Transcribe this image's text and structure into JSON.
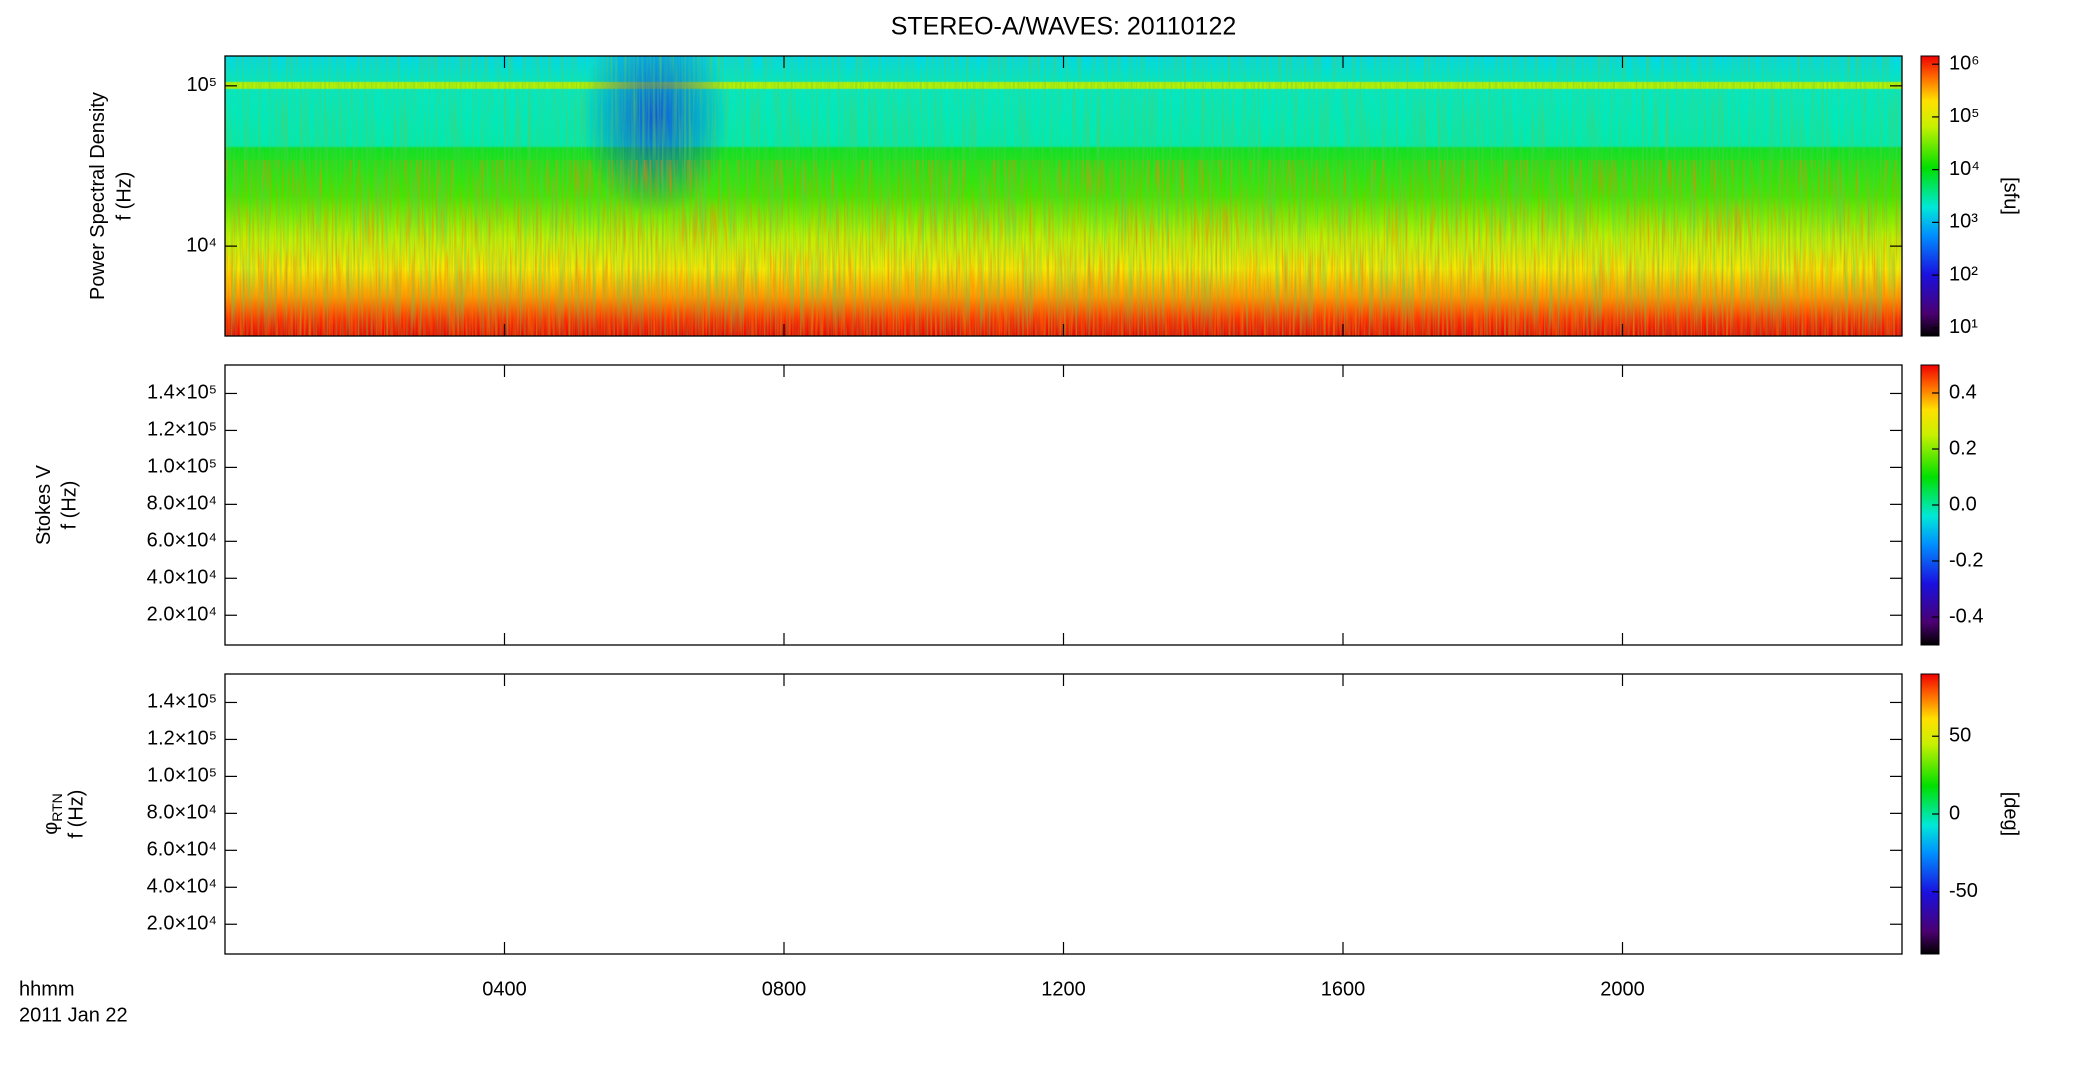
{
  "chart_data": [
    {
      "type": "spectrogram",
      "title": "STEREO-A/WAVES: 20110122",
      "ylabel": "Power Spectral Density",
      "ylabel2": "f (Hz)",
      "ylog": true,
      "ylim": [
        2750,
        153500
      ],
      "yticks": [
        {
          "value": 10000,
          "label": "10⁴"
        },
        {
          "value": 100000,
          "label": "10⁵"
        }
      ],
      "xlim": [
        0,
        24
      ],
      "xticks": [
        {
          "value": 4,
          "label": "0400"
        },
        {
          "value": 8,
          "label": "0800"
        },
        {
          "value": 12,
          "label": "1200"
        },
        {
          "value": 16,
          "label": "1600"
        },
        {
          "value": 20,
          "label": "2000"
        }
      ],
      "colorbar": {
        "log": true,
        "lim": [
          7,
          1430000
        ],
        "label": "[sfu]",
        "ticks": [
          {
            "value": 10,
            "label": "10¹"
          },
          {
            "value": 100,
            "label": "10²"
          },
          {
            "value": 1000,
            "label": "10³"
          },
          {
            "value": 10000,
            "label": "10⁴"
          },
          {
            "value": 100000,
            "label": "10⁵"
          },
          {
            "value": 1000000,
            "label": "10⁶"
          }
        ]
      }
    },
    {
      "type": "spectrogram",
      "ylabel": "Stokes V",
      "ylabel2": "f (Hz)",
      "ylog": false,
      "ylim": [
        3900,
        155400
      ],
      "yticks": [
        {
          "value": 20000,
          "label": "2.0×10⁴"
        },
        {
          "value": 40000,
          "label": "4.0×10⁴"
        },
        {
          "value": 60000,
          "label": "6.0×10⁴"
        },
        {
          "value": 80000,
          "label": "8.0×10⁴"
        },
        {
          "value": 100000,
          "label": "1.0×10⁵"
        },
        {
          "value": 120000,
          "label": "1.2×10⁵"
        },
        {
          "value": 140000,
          "label": "1.4×10⁵"
        }
      ],
      "xlim": [
        0,
        24
      ],
      "xticks": [
        {
          "value": 4,
          "label": "0400"
        },
        {
          "value": 8,
          "label": "0800"
        },
        {
          "value": 12,
          "label": "1200"
        },
        {
          "value": 16,
          "label": "1600"
        },
        {
          "value": 20,
          "label": "2000"
        }
      ],
      "colorbar": {
        "log": false,
        "lim": [
          -0.5,
          0.5
        ],
        "ticks": [
          -0.4,
          -0.2,
          {
            "value": 0,
            "label": "0.0"
          },
          0.2,
          0.4
        ]
      }
    },
    {
      "type": "spectrogram",
      "ylabel": "φ",
      "ylabel_sub": "RTN",
      "ylabel2": "f (Hz)",
      "ylog": false,
      "ylim": [
        3900,
        155400
      ],
      "yticks": [
        {
          "value": 20000,
          "label": "2.0×10⁴"
        },
        {
          "value": 40000,
          "label": "4.0×10⁴"
        },
        {
          "value": 60000,
          "label": "6.0×10⁴"
        },
        {
          "value": 80000,
          "label": "8.0×10⁴"
        },
        {
          "value": 100000,
          "label": "1.0×10⁵"
        },
        {
          "value": 120000,
          "label": "1.2×10⁵"
        },
        {
          "value": 140000,
          "label": "1.4×10⁵"
        }
      ],
      "xlim": [
        0,
        24
      ],
      "xticks": [
        {
          "value": 4,
          "label": "0400"
        },
        {
          "value": 8,
          "label": "0800"
        },
        {
          "value": 12,
          "label": "1200"
        },
        {
          "value": 16,
          "label": "1600"
        },
        {
          "value": 20,
          "label": "2000"
        }
      ],
      "xlabel": "hhmm",
      "date": "2011 Jan 22",
      "colorbar": {
        "log": false,
        "lim": [
          -90,
          90
        ],
        "label": "[deg]",
        "ticks": [
          -50,
          0,
          50
        ]
      }
    }
  ]
}
